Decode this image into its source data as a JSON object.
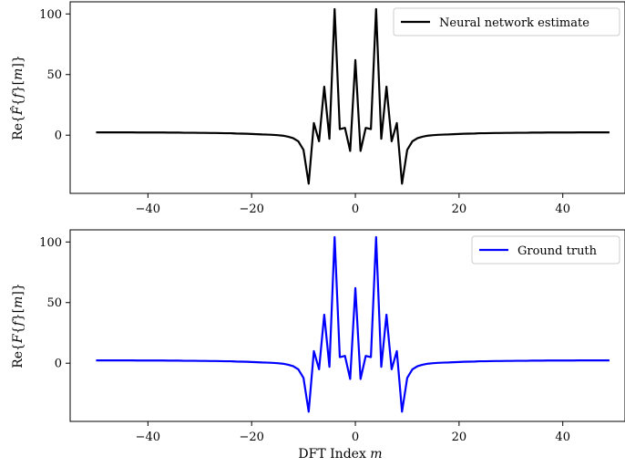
{
  "chart_data": [
    {
      "type": "line",
      "title": "",
      "xlabel": "",
      "ylabel": "Re{F̂{f}[m]}",
      "xlim": [
        -55,
        52
      ],
      "ylim": [
        -48,
        110
      ],
      "xticks": [
        -40,
        -20,
        0,
        20,
        40
      ],
      "yticks": [
        0,
        50,
        100
      ],
      "legend": {
        "placement": "top-right"
      },
      "grid": false,
      "series": [
        {
          "name": "Neural network estimate",
          "color": "#000000",
          "x": [],
          "y": []
        }
      ]
    },
    {
      "type": "line",
      "title": "",
      "xlabel": "DFT Index m",
      "ylabel": "Re{F{f}[m]}",
      "xlim": [
        -55,
        52
      ],
      "ylim": [
        -48,
        110
      ],
      "xticks": [
        -40,
        -20,
        0,
        20,
        40
      ],
      "yticks": [
        0,
        50,
        100
      ],
      "legend": {
        "placement": "top-right"
      },
      "grid": false,
      "series": [
        {
          "name": "Ground truth",
          "color": "#0000ff",
          "x": [],
          "y": []
        }
      ]
    }
  ]
}
